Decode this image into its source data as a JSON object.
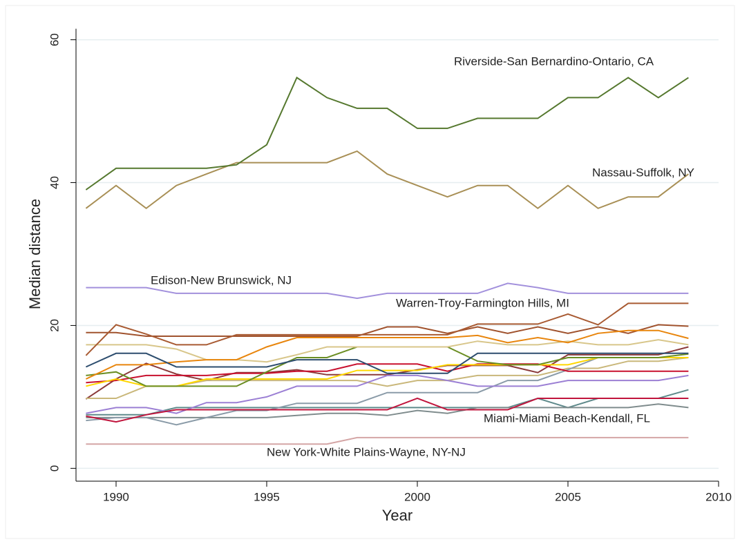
{
  "chart_data": {
    "type": "line",
    "xlabel": "Year",
    "ylabel": "Median distance",
    "x": [
      1989,
      1990,
      1991,
      1992,
      1993,
      1994,
      1995,
      1996,
      1997,
      1998,
      1999,
      2000,
      2001,
      2002,
      2003,
      2004,
      2005,
      2006,
      2007,
      2008,
      2009
    ],
    "xlim": [
      1988.67,
      2010
    ],
    "xticks": [
      1990,
      1995,
      2000,
      2005,
      2010
    ],
    "ylim": [
      -1.8,
      64.6
    ],
    "yticks": [
      0,
      20,
      40,
      60
    ],
    "grid": true,
    "series": [
      {
        "name": "Riverside-San Bernardino-Ontario, CA",
        "color": "#55782e",
        "values": [
          39,
          42,
          42,
          42,
          42,
          42.5,
          45.3,
          54.7,
          51.9,
          50.4,
          50.4,
          47.6,
          47.6,
          49,
          49,
          49,
          51.9,
          51.9,
          54.7,
          51.9,
          54.7
        ]
      },
      {
        "name": "Nassau-Suffolk, NY",
        "color": "#a88f55",
        "values": [
          36.4,
          39.6,
          36.4,
          39.6,
          41.2,
          42.8,
          42.8,
          42.8,
          42.8,
          44.4,
          41.2,
          39.6,
          38,
          39.6,
          39.6,
          36.4,
          39.6,
          36.4,
          38,
          38,
          41.2
        ]
      },
      {
        "name": "Edison-New Brunswick, NJ",
        "color": "#a290dc",
        "values": [
          25.3,
          25.3,
          25.3,
          24.5,
          24.5,
          24.5,
          24.5,
          24.5,
          24.5,
          23.8,
          24.5,
          24.5,
          24.5,
          24.5,
          25.9,
          25.3,
          24.5,
          24.5,
          24.5,
          24.5,
          24.5
        ]
      },
      {
        "name": "Warren-Troy-Farmington Hills, MI",
        "color": "#a85a32",
        "values": [
          15.8,
          20.1,
          18.8,
          17.3,
          17.3,
          18.7,
          18.7,
          18.7,
          18.7,
          18.7,
          18.7,
          18.7,
          18.7,
          20.2,
          20.2,
          20.2,
          21.6,
          20.1,
          23.1,
          23.1,
          23.1
        ]
      },
      {
        "name": "Miami-Miami Beach-Kendall, FL",
        "color": "#c0143c",
        "values": [
          7.3,
          6.5,
          7.5,
          8.2,
          8.2,
          8.2,
          8.2,
          8.2,
          8.2,
          8.2,
          8.2,
          9.8,
          8.2,
          8.2,
          8.2,
          9.8,
          9.8,
          9.8,
          9.8,
          9.8,
          9.8
        ]
      },
      {
        "name": "New York-White Plains-Wayne, NY-NJ",
        "color": "#d4a5a5",
        "values": [
          3.4,
          3.4,
          3.4,
          3.4,
          3.4,
          3.4,
          3.4,
          3.4,
          3.4,
          4.3,
          4.3,
          4.3,
          4.3,
          4.3,
          4.3,
          4.3,
          4.3,
          4.3,
          4.3,
          4.3,
          4.3
        ]
      },
      {
        "color": "#2d4d6e",
        "values": [
          14.2,
          16.1,
          16.1,
          14.2,
          14.2,
          14.2,
          14.2,
          15.2,
          15.2,
          15.2,
          13.3,
          13.3,
          13.3,
          16.1,
          16.1,
          16.1,
          16.1,
          16.1,
          16.1,
          16.1,
          16.1
        ]
      },
      {
        "color": "#e8850c",
        "values": [
          12.5,
          14.5,
          14.5,
          14.9,
          15.2,
          15.2,
          17,
          18.3,
          18.3,
          18.3,
          18.3,
          18.3,
          18.3,
          18.6,
          17.6,
          18.3,
          17.6,
          18.9,
          19.3,
          19.3,
          18.2
        ]
      },
      {
        "color": "#d8c68a",
        "values": [
          17.3,
          17.3,
          17.3,
          16.7,
          15.2,
          15.2,
          14.9,
          15.9,
          17,
          17,
          17,
          17,
          17,
          17.8,
          17.3,
          17.3,
          17.8,
          17.3,
          17.3,
          18,
          17.3
        ]
      },
      {
        "color": "#a0522d",
        "values": [
          19,
          19,
          18.5,
          18.5,
          18.5,
          18.5,
          18.5,
          18.5,
          18.5,
          18.5,
          19.8,
          19.8,
          18.9,
          19.8,
          18.9,
          19.8,
          18.9,
          19.8,
          18.9,
          20.1,
          19.9
        ]
      },
      {
        "color": "#6b8e23",
        "values": [
          13,
          13.5,
          11.5,
          11.5,
          11.5,
          11.5,
          13.5,
          15.5,
          15.5,
          17,
          17,
          17,
          17,
          15,
          14.5,
          14.5,
          15.5,
          15.5,
          15.5,
          15.5,
          16
        ]
      },
      {
        "color": "#ffd700",
        "values": [
          11.5,
          12.5,
          11.5,
          11.5,
          12.5,
          12.5,
          12.5,
          12.5,
          12.5,
          13.7,
          13.7,
          13.7,
          14.5,
          14.5,
          14.5,
          14.5,
          14.5,
          15.5,
          15.5,
          15.5,
          15.5
        ]
      },
      {
        "color": "#c8102e",
        "values": [
          12,
          12.3,
          13,
          13,
          13,
          13.3,
          13.3,
          13.6,
          13.6,
          14.6,
          14.6,
          14.6,
          13.6,
          14.6,
          14.6,
          14.6,
          13.6,
          13.6,
          13.6,
          13.6,
          13.6
        ]
      },
      {
        "color": "#9b7fd4",
        "values": [
          7.7,
          8.5,
          8.5,
          7.7,
          9.2,
          9.2,
          10,
          11.5,
          11.5,
          11.5,
          13,
          13,
          12.3,
          11.5,
          11.5,
          11.5,
          12.3,
          12.3,
          12.3,
          12.3,
          13
        ]
      },
      {
        "color": "#8a9ba8",
        "values": [
          6.7,
          7.1,
          7.1,
          6.1,
          7.1,
          8.1,
          8.1,
          9.1,
          9.1,
          9.1,
          10.6,
          10.6,
          10.6,
          10.6,
          12.3,
          12.3,
          13.8,
          15.5,
          15.5,
          15.5,
          15.5
        ]
      },
      {
        "color": "#7f8c8d",
        "values": [
          7.1,
          7.1,
          7.1,
          7.1,
          7.1,
          7.1,
          7.1,
          7.4,
          7.7,
          7.7,
          7.4,
          8.1,
          7.7,
          8.5,
          8.5,
          8.5,
          8.5,
          8.5,
          8.5,
          9,
          8.5
        ]
      },
      {
        "color": "#5f8a8b",
        "values": [
          7.5,
          7.5,
          7.5,
          8.5,
          8.5,
          8.5,
          8.5,
          8.5,
          8.5,
          8.5,
          8.5,
          8.5,
          8.5,
          8.5,
          8.5,
          9.8,
          8.5,
          9.8,
          9.8,
          9.8,
          11
        ]
      },
      {
        "color": "#c9b77a",
        "values": [
          9.8,
          9.8,
          11.5,
          11.5,
          12.3,
          12.3,
          12.3,
          12.3,
          12.3,
          12.3,
          11.5,
          12.3,
          12.3,
          13,
          13,
          13,
          14,
          14,
          15,
          15,
          15.5
        ]
      },
      {
        "color": "#8b3a3a",
        "values": [
          9.7,
          12.5,
          14.7,
          13.2,
          12.3,
          13.4,
          13.4,
          13.8,
          13.1,
          13.1,
          13.1,
          13.8,
          14.4,
          14.4,
          14.4,
          13.4,
          15.9,
          15.9,
          15.9,
          15.9,
          17
        ]
      }
    ]
  }
}
